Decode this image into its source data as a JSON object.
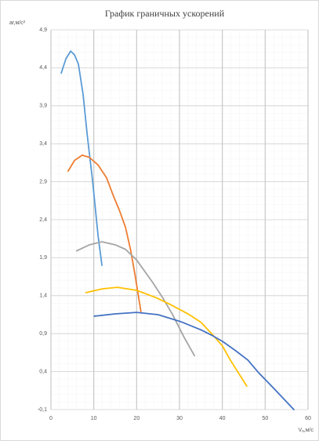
{
  "chart_data": {
    "type": "line",
    "title": "График граничных ускорений",
    "ylabel": "aг,м/с²",
    "xlabel": "Vₐ,м/с",
    "xlim": [
      0,
      60
    ],
    "xticks": [
      0,
      10,
      20,
      30,
      40,
      50,
      60
    ],
    "ylim": [
      -0.1,
      4.9
    ],
    "yticks": [
      {
        "value": -0.1,
        "label": "-0,1"
      },
      {
        "value": 0.4,
        "label": "0,4"
      },
      {
        "value": 0.9,
        "label": "0,9"
      },
      {
        "value": 1.4,
        "label": "1,4"
      },
      {
        "value": 1.9,
        "label": "1,9"
      },
      {
        "value": 2.4,
        "label": "2,4"
      },
      {
        "value": 2.9,
        "label": "2,9"
      },
      {
        "value": 3.4,
        "label": "3,4"
      },
      {
        "value": 3.9,
        "label": "3,9"
      },
      {
        "value": 4.4,
        "label": "4,4"
      },
      {
        "value": 4.9,
        "label": "4,9"
      }
    ],
    "grid": true,
    "series": [
      {
        "color": "#5b9bd5",
        "x": [
          2.4,
          3.5,
          4.6,
          5.5,
          6.4,
          7.5,
          8.5,
          9.7,
          11.0,
          11.9
        ],
        "values": [
          4.33,
          4.52,
          4.62,
          4.57,
          4.45,
          4.05,
          3.5,
          2.92,
          2.19,
          1.8
        ]
      },
      {
        "color": "#ed7d31",
        "x": [
          4.0,
          5.5,
          7.3,
          9,
          11,
          13,
          14.6,
          16,
          17.4,
          18.6,
          19.6,
          21.0
        ],
        "values": [
          3.04,
          3.18,
          3.25,
          3.22,
          3.12,
          2.95,
          2.71,
          2.52,
          2.3,
          2.0,
          1.68,
          1.19
        ]
      },
      {
        "color": "#a5a5a5",
        "x": [
          6,
          9,
          11.9,
          15,
          17.4,
          20,
          23.8,
          26,
          28.3,
          31.1,
          33.5
        ],
        "values": [
          1.99,
          2.07,
          2.11,
          2.07,
          2.01,
          1.87,
          1.57,
          1.38,
          1.16,
          0.85,
          0.61
        ]
      },
      {
        "color": "#ffc000",
        "x": [
          8.2,
          12,
          15.5,
          20,
          24.7,
          28,
          32,
          35,
          37.5,
          40,
          42,
          45.7
        ],
        "values": [
          1.44,
          1.49,
          1.51,
          1.47,
          1.37,
          1.28,
          1.16,
          1.05,
          0.9,
          0.74,
          0.54,
          0.21
        ]
      },
      {
        "color": "#4472c4",
        "x": [
          10.1,
          15,
          20,
          25,
          30.2,
          35,
          37.5,
          40,
          43,
          46,
          48.4,
          52,
          56.7
        ],
        "values": [
          1.13,
          1.16,
          1.18,
          1.15,
          1.06,
          0.95,
          0.88,
          0.8,
          0.68,
          0.55,
          0.39,
          0.18,
          -0.1
        ]
      }
    ]
  }
}
